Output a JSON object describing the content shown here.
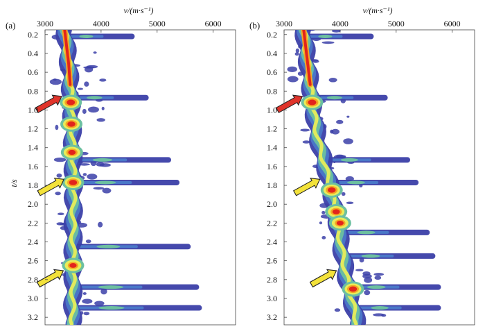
{
  "chart_data": [
    {
      "type": "heatmap",
      "panel_label": "(a)",
      "xlabel": "v/(m·s⁻¹)",
      "ylabel": "t/s",
      "x_ticks": [
        3000,
        4000,
        5000,
        6000
      ],
      "y_ticks": [
        0.2,
        0.4,
        0.6,
        0.8,
        1.0,
        1.2,
        1.4,
        1.6,
        1.8,
        2.0,
        2.2,
        2.4,
        2.6,
        2.8,
        3.0,
        3.2
      ],
      "xlim": [
        3000,
        6400
      ],
      "ylim": [
        0.15,
        3.28
      ],
      "trend": [
        {
          "t": 0.15,
          "v": 3350
        },
        {
          "t": 0.5,
          "v": 3420
        },
        {
          "t": 0.9,
          "v": 3470
        },
        {
          "t": 1.3,
          "v": 3490
        },
        {
          "t": 1.8,
          "v": 3510
        },
        {
          "t": 2.3,
          "v": 3500
        },
        {
          "t": 2.8,
          "v": 3500
        },
        {
          "t": 3.25,
          "v": 3490
        }
      ],
      "peaks": [
        {
          "t": 0.92,
          "v": 3460,
          "level": 1.0
        },
        {
          "t": 1.15,
          "v": 3470,
          "level": 0.95
        },
        {
          "t": 1.45,
          "v": 3480,
          "level": 0.9
        },
        {
          "t": 1.77,
          "v": 3500,
          "level": 0.95
        },
        {
          "t": 2.65,
          "v": 3500,
          "level": 0.85
        }
      ],
      "events": [
        {
          "t": 0.22,
          "v_max": 4600
        },
        {
          "t": 0.87,
          "v_max": 4850
        },
        {
          "t": 1.53,
          "v_max": 5250
        },
        {
          "t": 1.77,
          "v_max": 5400
        },
        {
          "t": 2.45,
          "v_max": 5600
        },
        {
          "t": 2.88,
          "v_max": 5750
        },
        {
          "t": 3.1,
          "v_max": 5800
        }
      ],
      "arrows": [
        {
          "t": 0.9,
          "color": "#e0342b"
        },
        {
          "t": 1.78,
          "color": "#f3e23a"
        },
        {
          "t": 2.75,
          "color": "#f3e23a"
        }
      ]
    },
    {
      "type": "heatmap",
      "panel_label": "(b)",
      "xlabel": "v/(m·s⁻¹)",
      "ylabel": "",
      "x_ticks": [
        3000,
        4000,
        5000,
        6000
      ],
      "y_ticks": [
        0.2,
        0.4,
        0.6,
        0.8,
        1.0,
        1.2,
        1.4,
        1.6,
        1.8,
        2.0,
        2.2,
        2.4,
        2.6,
        2.8,
        3.0,
        3.2
      ],
      "xlim": [
        3000,
        6400
      ],
      "ylim": [
        0.15,
        3.28
      ],
      "trend": [
        {
          "t": 0.15,
          "v": 3350
        },
        {
          "t": 0.5,
          "v": 3420
        },
        {
          "t": 0.9,
          "v": 3500
        },
        {
          "t": 1.3,
          "v": 3600
        },
        {
          "t": 1.8,
          "v": 3820
        },
        {
          "t": 2.3,
          "v": 3980
        },
        {
          "t": 2.8,
          "v": 4120
        },
        {
          "t": 3.25,
          "v": 4300
        }
      ],
      "peaks": [
        {
          "t": 0.92,
          "v": 3500,
          "level": 1.0
        },
        {
          "t": 1.85,
          "v": 3850,
          "level": 0.95
        },
        {
          "t": 2.08,
          "v": 3930,
          "level": 0.9
        },
        {
          "t": 2.2,
          "v": 4000,
          "level": 0.85
        },
        {
          "t": 2.9,
          "v": 4230,
          "level": 0.95
        }
      ],
      "events": [
        {
          "t": 0.22,
          "v_max": 4600
        },
        {
          "t": 0.87,
          "v_max": 4850
        },
        {
          "t": 1.53,
          "v_max": 5250
        },
        {
          "t": 1.77,
          "v_max": 5400
        },
        {
          "t": 2.3,
          "v_max": 5600
        },
        {
          "t": 2.55,
          "v_max": 5700
        },
        {
          "t": 2.88,
          "v_max": 5800
        },
        {
          "t": 3.1,
          "v_max": 5800
        }
      ],
      "arrows": [
        {
          "t": 0.9,
          "color": "#e0342b"
        },
        {
          "t": 1.78,
          "color": "#f3e23a"
        },
        {
          "t": 2.75,
          "color": "#f3e23a"
        }
      ]
    }
  ]
}
